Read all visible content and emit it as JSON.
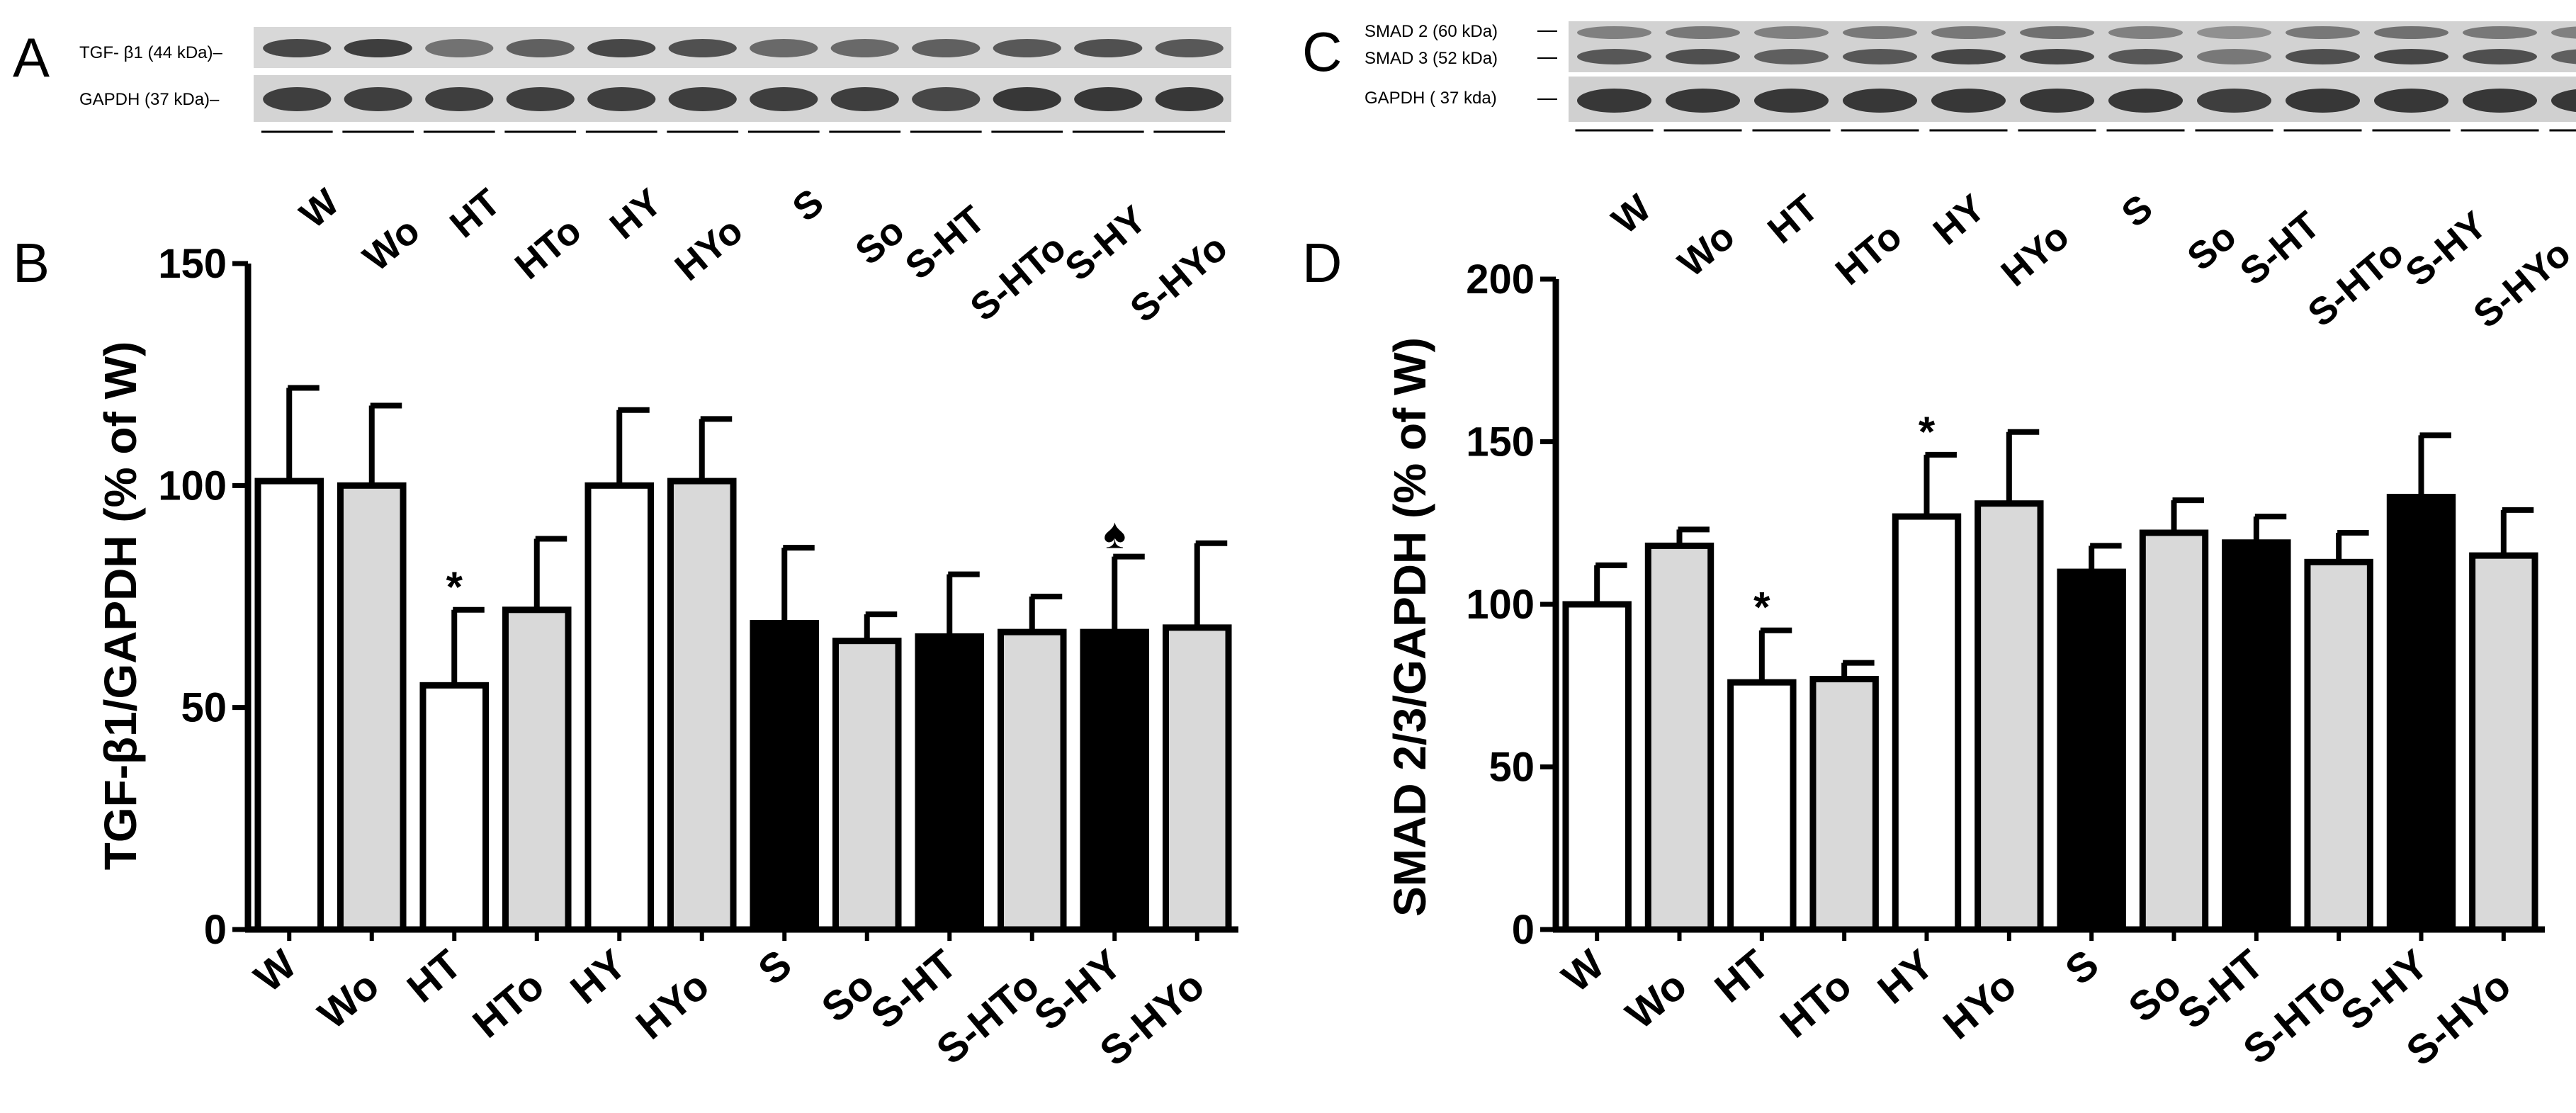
{
  "panels": {
    "A": {
      "letter": "A",
      "blot_labels": [
        "TGF- β1 (44 kDa)–",
        "GAPDH (37 kDa)–"
      ],
      "lanes": [
        "W",
        "Wo",
        "HT",
        "HTo",
        "HY",
        "HYo",
        "S",
        "So",
        "S-HT",
        "S-HTo",
        "S-HY",
        "S-HYo"
      ]
    },
    "C": {
      "letter": "C",
      "blot_labels": [
        "SMAD 2 (60 kDa)",
        "SMAD 3 (52 kDa)",
        "GAPDH ( 37 kda)"
      ],
      "lanes": [
        "W",
        "Wo",
        "HT",
        "HTo",
        "HY",
        "HYo",
        "S",
        "So",
        "S-HT",
        "S-HTo",
        "S-HY",
        "S-HYo"
      ]
    }
  },
  "chart_data": [
    {
      "panel": "B",
      "type": "bar",
      "ylabel": "TGF-β1/GAPDH (% of W)",
      "ylim": [
        0,
        150
      ],
      "yticks": [
        0,
        50,
        100,
        150
      ],
      "categories": [
        "W",
        "Wo",
        "HT",
        "HTo",
        "HY",
        "HYo",
        "S",
        "So",
        "S-HT",
        "S-HTo",
        "S-HY",
        "S-HYo"
      ],
      "values": [
        101,
        100,
        55,
        72,
        100,
        101,
        69,
        65,
        66,
        67,
        67,
        68
      ],
      "errors": [
        21,
        18,
        17,
        16,
        17,
        14,
        17,
        6,
        14,
        8,
        17,
        19
      ],
      "fills": [
        "#ffffff",
        "#d9d9d9",
        "#ffffff",
        "#d9d9d9",
        "#ffffff",
        "#d9d9d9",
        "#000000",
        "#d9d9d9",
        "#000000",
        "#d9d9d9",
        "#000000",
        "#d9d9d9"
      ],
      "annotations": [
        {
          "category": "HT",
          "text": "*"
        },
        {
          "category": "S-HY",
          "text": "♠"
        }
      ]
    },
    {
      "panel": "D",
      "type": "bar",
      "ylabel": "SMAD 2/3/GAPDH (% of W)",
      "ylim": [
        0,
        200
      ],
      "yticks": [
        0,
        50,
        100,
        150,
        200
      ],
      "categories": [
        "W",
        "Wo",
        "HT",
        "HTo",
        "HY",
        "HYo",
        "S",
        "So",
        "S-HT",
        "S-HTo",
        "S-HY",
        "S-HYo"
      ],
      "values": [
        100,
        118,
        76,
        77,
        127,
        131,
        110,
        122,
        119,
        113,
        133,
        115
      ],
      "errors": [
        12,
        5,
        16,
        5,
        19,
        22,
        8,
        10,
        8,
        9,
        19,
        14
      ],
      "fills": [
        "#ffffff",
        "#d9d9d9",
        "#ffffff",
        "#d9d9d9",
        "#ffffff",
        "#d9d9d9",
        "#000000",
        "#d9d9d9",
        "#000000",
        "#d9d9d9",
        "#000000",
        "#d9d9d9"
      ],
      "annotations": [
        {
          "category": "HT",
          "text": "*"
        },
        {
          "category": "HY",
          "text": "*"
        }
      ]
    }
  ],
  "colors": {
    "white_bar": "#ffffff",
    "gray_bar": "#d9d9d9",
    "black_bar": "#000000",
    "blot_band": "#2e2e2e",
    "blot_bg": "#d6d6d6"
  }
}
